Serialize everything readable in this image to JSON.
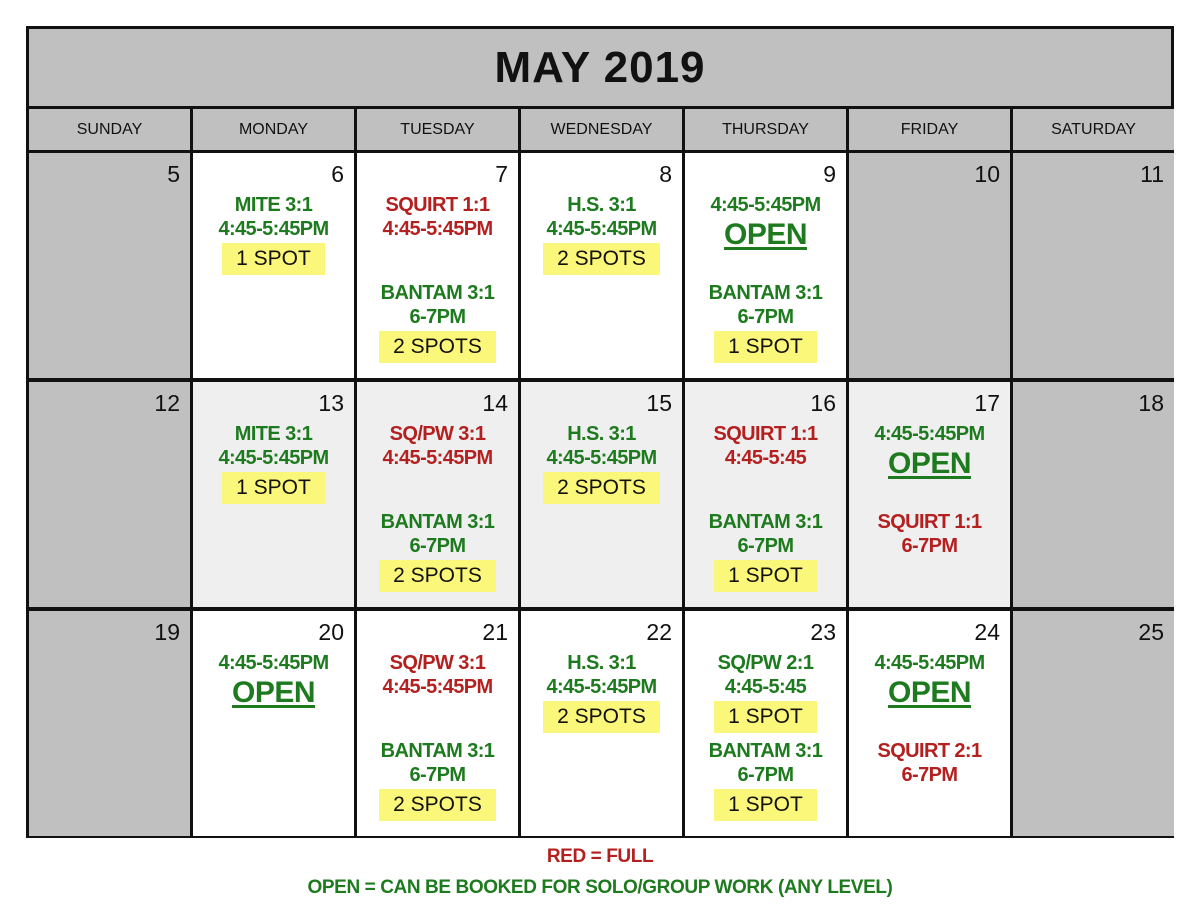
{
  "title": "MAY 2019",
  "colors": {
    "header_bg": "#bfc0bf",
    "weekend_bg": "#bfc0bf",
    "week_shade": "#efefef",
    "green": "#1e7a1e",
    "red": "#b3201f",
    "spot_bg": "#fbf77a"
  },
  "days": [
    "SUNDAY",
    "MONDAY",
    "TUESDAY",
    "WEDNESDAY",
    "THURSDAY",
    "FRIDAY",
    "SATURDAY"
  ],
  "weeks": [
    {
      "cells": [
        {
          "num": "5",
          "bg": "gray",
          "blocks": []
        },
        {
          "num": "6",
          "bg": "white",
          "blocks": [
            {
              "color": "green",
              "lines": [
                "MITE 3:1",
                "4:45-5:45PM"
              ],
              "spots": "1 SPOT"
            }
          ]
        },
        {
          "num": "7",
          "bg": "white",
          "blocks": [
            {
              "color": "red",
              "lines": [
                "SQUIRT 1:1",
                "4:45-5:45PM"
              ]
            },
            {
              "color": "green",
              "lines": [
                "BANTAM 3:1",
                "6-7PM"
              ],
              "spots": "2 SPOTS"
            }
          ]
        },
        {
          "num": "8",
          "bg": "white",
          "blocks": [
            {
              "color": "green",
              "lines": [
                "H.S. 3:1",
                "4:45-5:45PM"
              ],
              "spots": "2 SPOTS"
            }
          ]
        },
        {
          "num": "9",
          "bg": "white",
          "blocks": [
            {
              "color": "green",
              "lines": [
                "4:45-5:45PM"
              ],
              "open": "OPEN"
            },
            {
              "color": "green",
              "lines": [
                "BANTAM 3:1",
                "6-7PM"
              ],
              "spots": "1 SPOT"
            }
          ]
        },
        {
          "num": "10",
          "bg": "gray",
          "blocks": []
        },
        {
          "num": "11",
          "bg": "gray",
          "blocks": []
        }
      ]
    },
    {
      "cells": [
        {
          "num": "12",
          "bg": "gray",
          "blocks": []
        },
        {
          "num": "13",
          "bg": "light",
          "blocks": [
            {
              "color": "green",
              "lines": [
                "MITE 3:1",
                "4:45-5:45PM"
              ],
              "spots": "1 SPOT"
            }
          ]
        },
        {
          "num": "14",
          "bg": "light",
          "blocks": [
            {
              "color": "red",
              "lines": [
                "SQ/PW 3:1",
                "4:45-5:45PM"
              ]
            },
            {
              "color": "green",
              "lines": [
                "BANTAM 3:1",
                "6-7PM"
              ],
              "spots": "2 SPOTS"
            }
          ]
        },
        {
          "num": "15",
          "bg": "light",
          "blocks": [
            {
              "color": "green",
              "lines": [
                "H.S. 3:1",
                "4:45-5:45PM"
              ],
              "spots": "2 SPOTS"
            }
          ]
        },
        {
          "num": "16",
          "bg": "light",
          "blocks": [
            {
              "color": "red",
              "lines": [
                "SQUIRT 1:1",
                "4:45-5:45"
              ]
            },
            {
              "color": "green",
              "lines": [
                "BANTAM 3:1",
                "6-7PM"
              ],
              "spots": "1 SPOT"
            }
          ]
        },
        {
          "num": "17",
          "bg": "light",
          "blocks": [
            {
              "color": "green",
              "lines": [
                "4:45-5:45PM"
              ],
              "open": "OPEN"
            },
            {
              "color": "red",
              "lines": [
                "SQUIRT 1:1",
                "6-7PM"
              ]
            }
          ]
        },
        {
          "num": "18",
          "bg": "gray",
          "blocks": []
        }
      ]
    },
    {
      "cells": [
        {
          "num": "19",
          "bg": "gray",
          "blocks": []
        },
        {
          "num": "20",
          "bg": "white",
          "blocks": [
            {
              "color": "green",
              "lines": [
                "4:45-5:45PM"
              ],
              "open": "OPEN"
            }
          ]
        },
        {
          "num": "21",
          "bg": "white",
          "blocks": [
            {
              "color": "red",
              "lines": [
                "SQ/PW 3:1",
                "4:45-5:45PM"
              ]
            },
            {
              "color": "green",
              "lines": [
                "BANTAM 3:1",
                "6-7PM"
              ],
              "spots": "2 SPOTS"
            }
          ]
        },
        {
          "num": "22",
          "bg": "white",
          "blocks": [
            {
              "color": "green",
              "lines": [
                "H.S. 3:1",
                "4:45-5:45PM"
              ],
              "spots": "2 SPOTS"
            }
          ]
        },
        {
          "num": "23",
          "bg": "white",
          "blocks": [
            {
              "color": "green",
              "lines": [
                "SQ/PW 2:1",
                "4:45-5:45"
              ],
              "spots": "1 SPOT"
            },
            {
              "color": "green",
              "lines": [
                "BANTAM 3:1",
                "6-7PM"
              ],
              "spots": "1 SPOT"
            }
          ]
        },
        {
          "num": "24",
          "bg": "white",
          "blocks": [
            {
              "color": "green",
              "lines": [
                "4:45-5:45PM"
              ],
              "open": "OPEN"
            },
            {
              "color": "red",
              "lines": [
                "SQUIRT 2:1",
                "6-7PM"
              ]
            }
          ]
        },
        {
          "num": "25",
          "bg": "gray",
          "blocks": []
        }
      ]
    }
  ],
  "legend": {
    "red": "RED = FULL",
    "open": "OPEN = CAN BE BOOKED FOR SOLO/GROUP WORK (ANY LEVEL)"
  }
}
